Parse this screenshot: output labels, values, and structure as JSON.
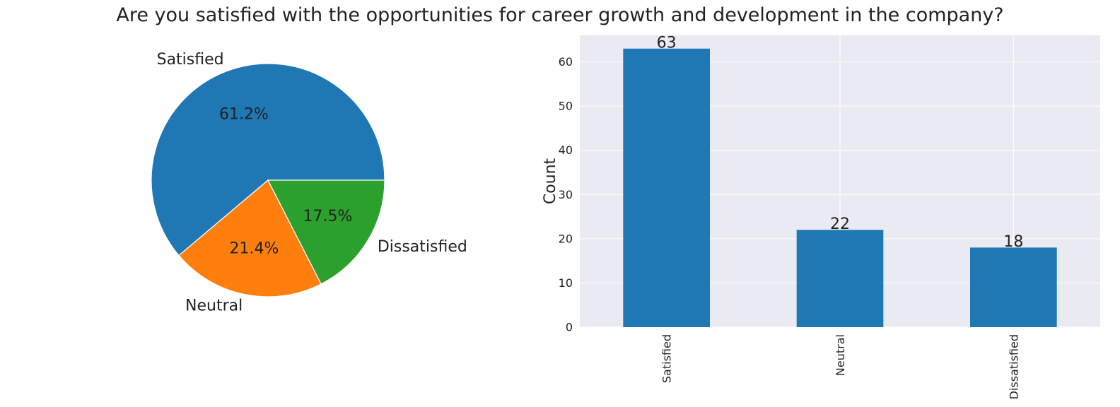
{
  "title": "Are you satisfied with the opportunities for career growth and development in the company?",
  "colors": {
    "satisfied": "#1f77b4",
    "neutral": "#ff7f0e",
    "dissatisfied": "#2ca02c",
    "bar": "#1f77b4",
    "plot_bg": "#eaeaf2",
    "grid": "#ffffff"
  },
  "chart_data": [
    {
      "type": "pie",
      "categories": [
        "Satisfied",
        "Neutral",
        "Dissatisfied"
      ],
      "values": [
        63,
        22,
        18
      ],
      "percent_labels": [
        "61.2%",
        "21.4%",
        "17.5%"
      ],
      "colors": [
        "#1f77b4",
        "#ff7f0e",
        "#2ca02c"
      ],
      "start_angle_deg": 0,
      "direction": "counterclockwise"
    },
    {
      "type": "bar",
      "categories": [
        "Satisfied",
        "Neutral",
        "Dissatisfied"
      ],
      "values": [
        63,
        22,
        18
      ],
      "data_labels": [
        "63",
        "22",
        "18"
      ],
      "xlabel": "",
      "ylabel": "Count",
      "ylim": [
        0,
        66
      ],
      "yticks": [
        0,
        10,
        20,
        30,
        40,
        50,
        60
      ],
      "grid": true,
      "color": "#1f77b4"
    }
  ]
}
